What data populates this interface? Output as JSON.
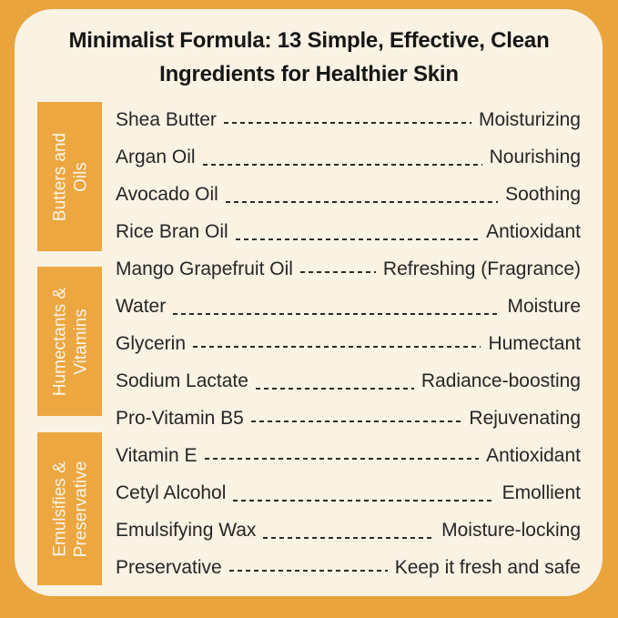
{
  "title": "Minimalist Formula: 13 Simple, Effective, Clean\nIngredients for Healthier Skin",
  "colors": {
    "border_orange": "#E9A43D",
    "block_orange": "#ECA741",
    "panel_cream": "#FAF2E3",
    "title_text": "#161616",
    "body_text": "#262626",
    "dash_color": "#2B2B2B",
    "label_text": "#FBF4E6"
  },
  "groups": [
    {
      "label": "Butters and\nOils"
    },
    {
      "label": "Humectants &\nVitamins"
    },
    {
      "label": "Emulsifies &\nPreservative"
    }
  ],
  "ingredients": [
    {
      "name": "Shea Butter",
      "benefit": "Moisturizing"
    },
    {
      "name": "Argan Oil",
      "benefit": "Nourishing"
    },
    {
      "name": "Avocado Oil",
      "benefit": "Soothing"
    },
    {
      "name": "Rice Bran Oil",
      "benefit": "Antioxidant"
    },
    {
      "name": "Mango Grapefruit Oil",
      "benefit": "Refreshing (Fragrance)"
    },
    {
      "name": "Water",
      "benefit": "Moisture"
    },
    {
      "name": "Glycerin",
      "benefit": "Humectant"
    },
    {
      "name": "Sodium Lactate",
      "benefit": "Radiance-boosting"
    },
    {
      "name": "Pro-Vitamin B5",
      "benefit": "Rejuvenating"
    },
    {
      "name": "Vitamin E",
      "benefit": "Antioxidant"
    },
    {
      "name": "Cetyl Alcohol",
      "benefit": "Emollient"
    },
    {
      "name": "Emulsifying Wax",
      "benefit": "Moisture-locking"
    },
    {
      "name": "Preservative",
      "benefit": "Keep it fresh and safe"
    }
  ]
}
